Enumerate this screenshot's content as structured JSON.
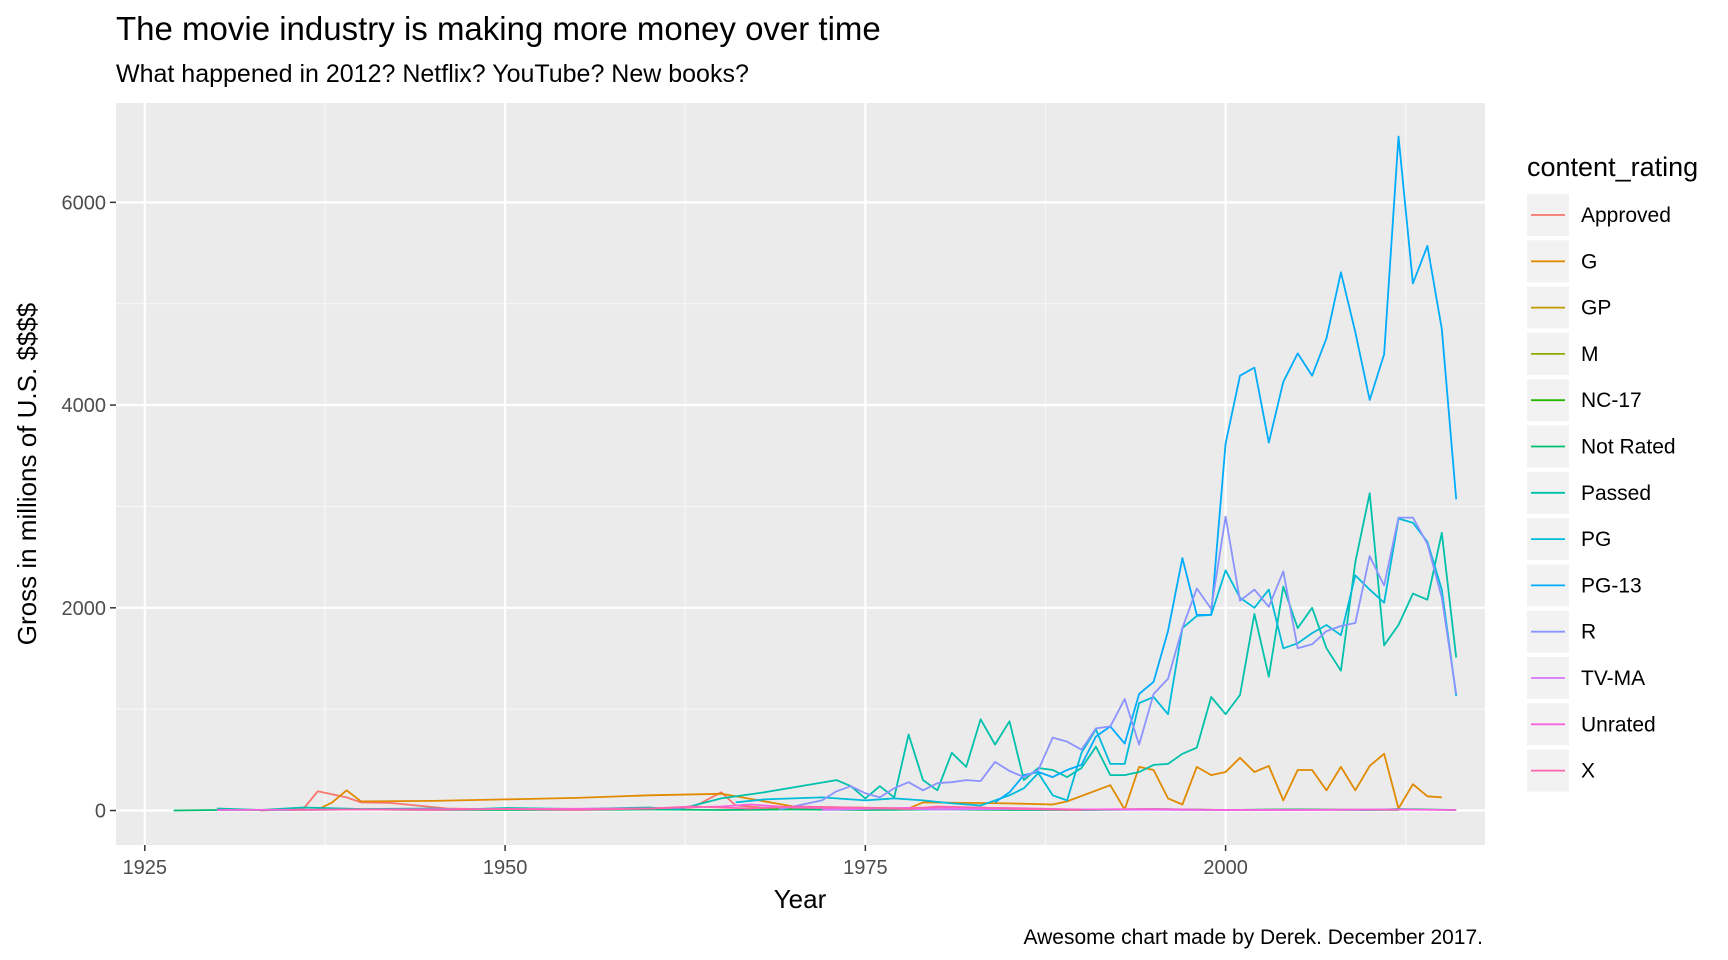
{
  "title": "The movie industry is making more money over time",
  "subtitle": "What happened in 2012? Netflix? YouTube? New books?",
  "caption": "Awesome chart made by Derek. December 2017.",
  "chart_data": {
    "type": "line",
    "xlabel": "Year",
    "ylabel": "Gross in millions of U.S. $$$$",
    "xlim": [
      1923,
      2018
    ],
    "ylim": [
      -340,
      6980
    ],
    "xticks": [
      1925,
      1950,
      1975,
      2000
    ],
    "xtick_labels": [
      "1925",
      "1950",
      "1975",
      "2000"
    ],
    "yticks": [
      0,
      2000,
      4000,
      6000
    ],
    "ytick_labels": [
      "0",
      "2000",
      "4000",
      "6000"
    ],
    "grid": true,
    "legend": {
      "title": "content_rating",
      "position": "right"
    },
    "series": [
      {
        "name": "Approved",
        "color": "#F8766D",
        "points": [
          [
            1933,
            0
          ],
          [
            1936,
            15
          ],
          [
            1937,
            190
          ],
          [
            1939,
            130
          ],
          [
            1940,
            80
          ],
          [
            1942,
            75
          ],
          [
            1946,
            20
          ],
          [
            1950,
            10
          ],
          [
            1960,
            10
          ],
          [
            1963,
            30
          ],
          [
            1965,
            180
          ],
          [
            1966,
            50
          ],
          [
            1969,
            15
          ],
          [
            1985,
            10
          ],
          [
            1990,
            5
          ]
        ]
      },
      {
        "name": "G",
        "color": "#E18A00",
        "points": [
          [
            1937,
            10
          ],
          [
            1938,
            80
          ],
          [
            1939,
            200
          ],
          [
            1940,
            90
          ],
          [
            1945,
            95
          ],
          [
            1950,
            110
          ],
          [
            1955,
            125
          ],
          [
            1960,
            150
          ],
          [
            1965,
            165
          ],
          [
            1966,
            140
          ],
          [
            1970,
            40
          ],
          [
            1978,
            20
          ],
          [
            1979,
            80
          ],
          [
            1985,
            70
          ],
          [
            1988,
            60
          ],
          [
            1989,
            90
          ],
          [
            1992,
            250
          ],
          [
            1993,
            10
          ],
          [
            1994,
            430
          ],
          [
            1995,
            400
          ],
          [
            1996,
            120
          ],
          [
            1997,
            60
          ],
          [
            1998,
            430
          ],
          [
            1999,
            350
          ],
          [
            2000,
            380
          ],
          [
            2001,
            520
          ],
          [
            2002,
            380
          ],
          [
            2003,
            440
          ],
          [
            2004,
            100
          ],
          [
            2005,
            400
          ],
          [
            2006,
            400
          ],
          [
            2007,
            200
          ],
          [
            2008,
            430
          ],
          [
            2009,
            200
          ],
          [
            2010,
            440
          ],
          [
            2011,
            560
          ],
          [
            2012,
            20
          ],
          [
            2013,
            260
          ],
          [
            2014,
            140
          ],
          [
            2015,
            130
          ]
        ]
      },
      {
        "name": "GP",
        "color": "#BE9C00",
        "points": [
          [
            1970,
            20
          ],
          [
            1972,
            30
          ],
          [
            1974,
            15
          ]
        ]
      },
      {
        "name": "M",
        "color": "#8CAB00",
        "points": [
          [
            1967,
            10
          ],
          [
            1969,
            20
          ],
          [
            1971,
            10
          ]
        ]
      },
      {
        "name": "NC-17",
        "color": "#24B700",
        "points": [
          [
            1990,
            5
          ],
          [
            1995,
            15
          ],
          [
            2000,
            5
          ],
          [
            2005,
            10
          ],
          [
            2012,
            5
          ]
        ]
      },
      {
        "name": "Not Rated",
        "color": "#00BE70",
        "points": [
          [
            1927,
            0
          ],
          [
            1930,
            5
          ],
          [
            1935,
            5
          ],
          [
            1940,
            10
          ],
          [
            1945,
            5
          ],
          [
            1950,
            5
          ],
          [
            1955,
            5
          ],
          [
            1960,
            10
          ],
          [
            1965,
            5
          ],
          [
            1970,
            10
          ],
          [
            1975,
            5
          ],
          [
            1980,
            10
          ],
          [
            1985,
            5
          ],
          [
            1990,
            5
          ],
          [
            1995,
            10
          ],
          [
            2000,
            5
          ],
          [
            2005,
            10
          ],
          [
            2010,
            5
          ],
          [
            2012,
            15
          ],
          [
            2016,
            5
          ]
        ]
      },
      {
        "name": "Passed",
        "color": "#00C1AB",
        "points": [
          [
            1930,
            20
          ],
          [
            1933,
            5
          ],
          [
            1936,
            30
          ],
          [
            1940,
            15
          ],
          [
            1945,
            20
          ],
          [
            1947,
            10
          ],
          [
            1950,
            25
          ],
          [
            1955,
            15
          ],
          [
            1960,
            30
          ],
          [
            1962,
            10
          ],
          [
            1965,
            120
          ],
          [
            1968,
            180
          ],
          [
            1973,
            300
          ],
          [
            1974,
            240
          ],
          [
            1975,
            120
          ],
          [
            1976,
            240
          ],
          [
            1977,
            130
          ],
          [
            1978,
            750
          ],
          [
            1979,
            300
          ],
          [
            1980,
            200
          ],
          [
            1981,
            570
          ],
          [
            1982,
            430
          ],
          [
            1983,
            900
          ],
          [
            1984,
            650
          ],
          [
            1985,
            880
          ],
          [
            1986,
            300
          ],
          [
            1987,
            420
          ],
          [
            1988,
            400
          ],
          [
            1989,
            330
          ],
          [
            1990,
            420
          ],
          [
            1991,
            630
          ],
          [
            1992,
            350
          ],
          [
            1993,
            350
          ],
          [
            1994,
            380
          ],
          [
            1995,
            450
          ],
          [
            1996,
            460
          ],
          [
            1997,
            560
          ],
          [
            1998,
            620
          ],
          [
            1999,
            1120
          ],
          [
            2000,
            950
          ],
          [
            2001,
            1140
          ],
          [
            2002,
            1940
          ],
          [
            2003,
            1320
          ],
          [
            2004,
            2210
          ],
          [
            2005,
            1800
          ],
          [
            2006,
            2000
          ],
          [
            2007,
            1600
          ],
          [
            2008,
            1380
          ],
          [
            2009,
            2450
          ],
          [
            2010,
            3130
          ],
          [
            2011,
            1630
          ],
          [
            2012,
            1830
          ],
          [
            2013,
            2140
          ],
          [
            2014,
            2080
          ],
          [
            2015,
            2740
          ],
          [
            2016,
            1510
          ]
        ]
      },
      {
        "name": "PG",
        "color": "#00BBDA",
        "points": [
          [
            1966,
            80
          ],
          [
            1968,
            110
          ],
          [
            1972,
            130
          ],
          [
            1975,
            100
          ],
          [
            1977,
            120
          ],
          [
            1979,
            100
          ],
          [
            1981,
            70
          ],
          [
            1983,
            50
          ],
          [
            1985,
            150
          ],
          [
            1986,
            220
          ],
          [
            1987,
            370
          ],
          [
            1988,
            150
          ],
          [
            1989,
            100
          ],
          [
            1990,
            570
          ],
          [
            1991,
            800
          ],
          [
            1992,
            460
          ],
          [
            1993,
            460
          ],
          [
            1994,
            1060
          ],
          [
            1995,
            1120
          ],
          [
            1996,
            950
          ],
          [
            1997,
            1800
          ],
          [
            1998,
            1920
          ],
          [
            1999,
            1930
          ],
          [
            2000,
            2370
          ],
          [
            2001,
            2100
          ],
          [
            2002,
            2000
          ],
          [
            2003,
            2180
          ],
          [
            2004,
            1600
          ],
          [
            2005,
            1650
          ],
          [
            2006,
            1750
          ],
          [
            2007,
            1830
          ],
          [
            2008,
            1730
          ],
          [
            2009,
            2320
          ],
          [
            2010,
            2180
          ],
          [
            2011,
            2050
          ],
          [
            2012,
            2880
          ],
          [
            2013,
            2840
          ],
          [
            2014,
            2650
          ],
          [
            2015,
            2180
          ],
          [
            2016,
            1130
          ]
        ]
      },
      {
        "name": "PG-13",
        "color": "#00ACFC",
        "points": [
          [
            1984,
            80
          ],
          [
            1985,
            180
          ],
          [
            1986,
            350
          ],
          [
            1987,
            380
          ],
          [
            1988,
            330
          ],
          [
            1989,
            400
          ],
          [
            1990,
            450
          ],
          [
            1991,
            730
          ],
          [
            1992,
            830
          ],
          [
            1993,
            660
          ],
          [
            1994,
            1150
          ],
          [
            1995,
            1270
          ],
          [
            1996,
            1770
          ],
          [
            1997,
            2490
          ],
          [
            1998,
            1930
          ],
          [
            1999,
            1930
          ],
          [
            2000,
            3620
          ],
          [
            2001,
            4290
          ],
          [
            2002,
            4370
          ],
          [
            2003,
            3630
          ],
          [
            2004,
            4230
          ],
          [
            2005,
            4510
          ],
          [
            2006,
            4290
          ],
          [
            2007,
            4660
          ],
          [
            2008,
            5310
          ],
          [
            2009,
            4720
          ],
          [
            2010,
            4050
          ],
          [
            2011,
            4500
          ],
          [
            2012,
            6650
          ],
          [
            2013,
            5200
          ],
          [
            2014,
            5570
          ],
          [
            2015,
            4750
          ],
          [
            2016,
            3070
          ]
        ]
      },
      {
        "name": "R",
        "color": "#8B93FF",
        "points": [
          [
            1969,
            10
          ],
          [
            1972,
            100
          ],
          [
            1973,
            190
          ],
          [
            1974,
            240
          ],
          [
            1975,
            170
          ],
          [
            1976,
            130
          ],
          [
            1977,
            220
          ],
          [
            1978,
            280
          ],
          [
            1979,
            200
          ],
          [
            1980,
            270
          ],
          [
            1981,
            280
          ],
          [
            1982,
            300
          ],
          [
            1983,
            290
          ],
          [
            1984,
            480
          ],
          [
            1985,
            390
          ],
          [
            1986,
            330
          ],
          [
            1987,
            400
          ],
          [
            1988,
            720
          ],
          [
            1989,
            680
          ],
          [
            1990,
            600
          ],
          [
            1991,
            810
          ],
          [
            1992,
            830
          ],
          [
            1993,
            1100
          ],
          [
            1994,
            650
          ],
          [
            1995,
            1150
          ],
          [
            1996,
            1300
          ],
          [
            1997,
            1800
          ],
          [
            1998,
            2190
          ],
          [
            1999,
            1990
          ],
          [
            2000,
            2900
          ],
          [
            2001,
            2070
          ],
          [
            2002,
            2180
          ],
          [
            2003,
            2010
          ],
          [
            2004,
            2360
          ],
          [
            2005,
            1600
          ],
          [
            2006,
            1640
          ],
          [
            2007,
            1770
          ],
          [
            2008,
            1820
          ],
          [
            2009,
            1850
          ],
          [
            2010,
            2510
          ],
          [
            2011,
            2220
          ],
          [
            2012,
            2890
          ],
          [
            2013,
            2890
          ],
          [
            2014,
            2630
          ],
          [
            2015,
            2100
          ],
          [
            2016,
            1150
          ]
        ]
      },
      {
        "name": "TV-MA",
        "color": "#D575FE",
        "points": [
          [
            1972,
            5
          ],
          [
            1976,
            20
          ],
          [
            1980,
            10
          ],
          [
            1985,
            15
          ],
          [
            1990,
            10
          ],
          [
            1998,
            5
          ],
          [
            2005,
            5
          ],
          [
            2013,
            10
          ]
        ]
      },
      {
        "name": "Unrated",
        "color": "#F962DD",
        "points": [
          [
            1930,
            5
          ],
          [
            1940,
            10
          ],
          [
            1950,
            15
          ],
          [
            1960,
            20
          ],
          [
            1965,
            40
          ],
          [
            1967,
            60
          ],
          [
            1970,
            30
          ],
          [
            1975,
            20
          ],
          [
            1980,
            30
          ],
          [
            1985,
            25
          ],
          [
            1990,
            10
          ],
          [
            1995,
            15
          ],
          [
            2000,
            5
          ],
          [
            2005,
            5
          ],
          [
            2010,
            10
          ],
          [
            2016,
            5
          ]
        ]
      },
      {
        "name": "X",
        "color": "#FF65AC",
        "points": [
          [
            1935,
            5
          ],
          [
            1940,
            10
          ],
          [
            1945,
            5
          ],
          [
            1950,
            15
          ],
          [
            1955,
            5
          ],
          [
            1960,
            20
          ],
          [
            1963,
            40
          ],
          [
            1967,
            20
          ],
          [
            1970,
            40
          ],
          [
            1974,
            30
          ],
          [
            1976,
            25
          ],
          [
            1978,
            15
          ],
          [
            1980,
            40
          ],
          [
            1983,
            30
          ],
          [
            1985,
            20
          ],
          [
            1988,
            10
          ],
          [
            1990,
            5
          ]
        ]
      }
    ]
  }
}
